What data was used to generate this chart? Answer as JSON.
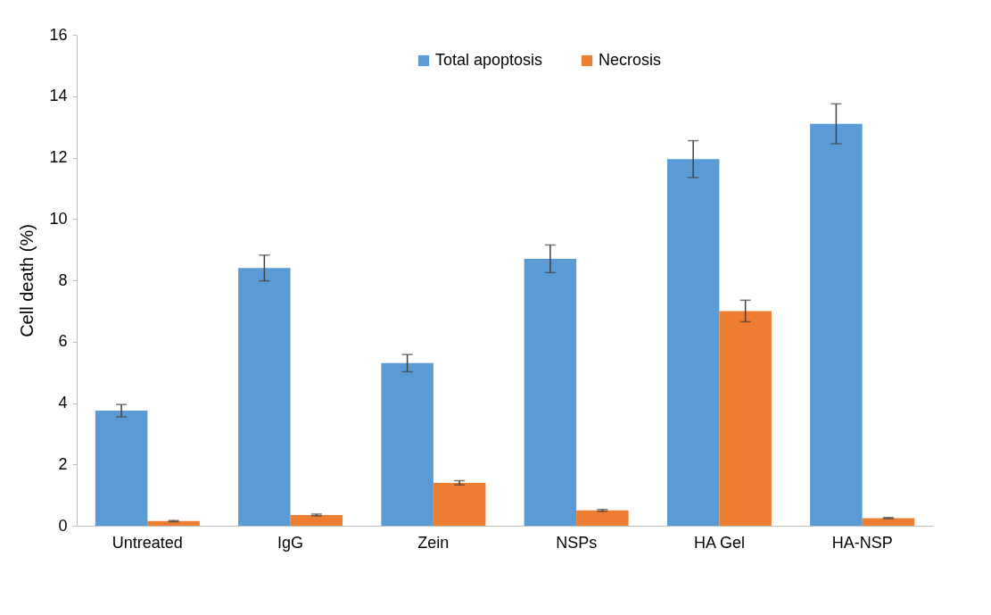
{
  "chart_data": {
    "type": "bar",
    "ylabel": "Cell death (%)",
    "categories": [
      "Untreated",
      "IgG",
      "Zein",
      "NSPs",
      "HA Gel",
      "HA-NSP"
    ],
    "series": [
      {
        "name": "Total apoptosis",
        "color": "#5b9bd5",
        "values": [
          3.75,
          8.4,
          5.3,
          8.7,
          11.95,
          13.1
        ],
        "errors": [
          0.2,
          0.42,
          0.28,
          0.45,
          0.6,
          0.65
        ]
      },
      {
        "name": "Necrosis",
        "color": "#ed7d31",
        "values": [
          0.15,
          0.35,
          1.4,
          0.5,
          7.0,
          0.25
        ],
        "errors": [
          0.02,
          0.03,
          0.07,
          0.03,
          0.35,
          0.02
        ]
      }
    ],
    "ylim": [
      0,
      16
    ],
    "yticks": [
      0,
      2,
      4,
      6,
      8,
      10,
      12,
      14,
      16
    ],
    "grid": false,
    "legend": "top"
  }
}
